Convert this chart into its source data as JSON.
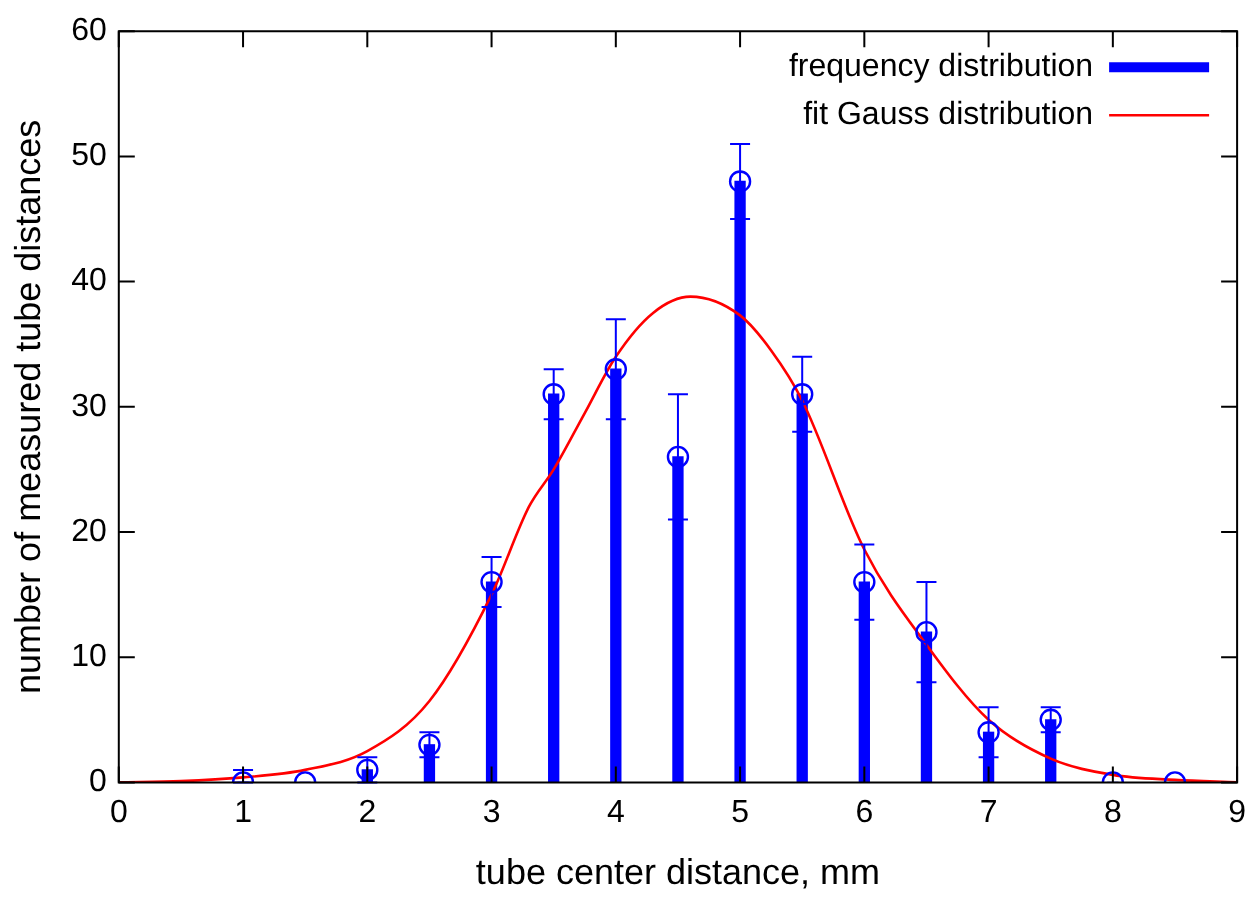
{
  "chart_data": {
    "type": "bar",
    "xlabel": "tube center distance, mm",
    "ylabel": "number of measured tube distances",
    "x": [
      1,
      1.5,
      2,
      2.5,
      3,
      3.5,
      4,
      4.5,
      5,
      5.5,
      6,
      6.5,
      7,
      7.5,
      8,
      8.5
    ],
    "series": [
      {
        "name": "frequency distribution",
        "color": "#0000ff",
        "values": [
          0,
          0,
          1,
          3,
          16,
          31,
          33,
          26,
          48,
          31,
          16,
          12,
          4,
          5,
          0,
          0
        ]
      },
      {
        "type": "scatter",
        "color": "#0000ff",
        "marker": "circle",
        "values": [
          0,
          0,
          1,
          3,
          16,
          31,
          33,
          26,
          48,
          31,
          16,
          12,
          4,
          5,
          0,
          0
        ],
        "errors": [
          [
            0,
            1
          ],
          null,
          [
            0,
            2
          ],
          [
            2,
            4
          ],
          [
            14,
            18
          ],
          [
            29,
            33
          ],
          [
            29,
            37
          ],
          [
            21,
            31
          ],
          [
            45,
            51
          ],
          [
            28,
            34
          ],
          [
            13,
            19
          ],
          [
            8,
            16
          ],
          [
            2,
            6
          ],
          [
            4,
            6
          ],
          null,
          null
        ]
      },
      {
        "name": "fit Gauss distribution",
        "type": "line",
        "color": "#ff0000",
        "x": [
          0,
          0.5,
          1,
          1.5,
          2,
          2.5,
          3,
          3.3,
          3.5,
          3.75,
          4,
          4.3,
          4.6,
          5,
          5.25,
          5.5,
          6,
          6.5,
          7,
          7.5,
          8,
          8.5,
          9
        ],
        "values": [
          0,
          0.1,
          0.4,
          1,
          2.5,
          6.5,
          15,
          22,
          25,
          29.5,
          34,
          37.5,
          38.8,
          37.3,
          34.5,
          30.5,
          18.6,
          11,
          5,
          1.9,
          0.6,
          0.2,
          0
        ]
      }
    ],
    "xlim": [
      0,
      9
    ],
    "xticks": [
      0,
      1,
      2,
      3,
      4,
      5,
      6,
      7,
      8,
      9
    ],
    "ylim": [
      0,
      60
    ],
    "yticks": [
      0,
      10,
      20,
      30,
      40,
      50,
      60
    ],
    "legend": "top right",
    "grid": false
  }
}
